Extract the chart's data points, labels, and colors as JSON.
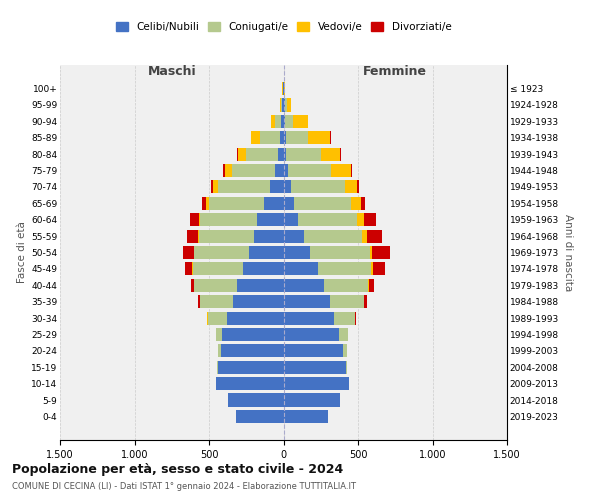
{
  "age_groups": [
    "0-4",
    "5-9",
    "10-14",
    "15-19",
    "20-24",
    "25-29",
    "30-34",
    "35-39",
    "40-44",
    "45-49",
    "50-54",
    "55-59",
    "60-64",
    "65-69",
    "70-74",
    "75-79",
    "80-84",
    "85-89",
    "90-94",
    "95-99",
    "100+"
  ],
  "birth_years": [
    "2019-2023",
    "2014-2018",
    "2009-2013",
    "2004-2008",
    "1999-2003",
    "1994-1998",
    "1989-1993",
    "1984-1988",
    "1979-1983",
    "1974-1978",
    "1969-1973",
    "1964-1968",
    "1959-1963",
    "1954-1958",
    "1949-1953",
    "1944-1948",
    "1939-1943",
    "1934-1938",
    "1929-1933",
    "1924-1928",
    "≤ 1923"
  ],
  "colors": {
    "celibi": "#4472c4",
    "coniugati": "#b5c98e",
    "vedovi": "#ffc000",
    "divorziati": "#cc0000"
  },
  "males": {
    "celibi": [
      320,
      370,
      450,
      440,
      420,
      410,
      380,
      340,
      310,
      270,
      230,
      200,
      180,
      130,
      90,
      55,
      35,
      25,
      15,
      8,
      3
    ],
    "coniugati": [
      0,
      0,
      2,
      5,
      20,
      40,
      130,
      220,
      290,
      340,
      370,
      370,
      380,
      370,
      350,
      290,
      220,
      130,
      40,
      8,
      2
    ],
    "vedovi": [
      0,
      0,
      0,
      0,
      0,
      1,
      1,
      1,
      1,
      2,
      3,
      5,
      10,
      20,
      30,
      50,
      50,
      60,
      30,
      10,
      2
    ],
    "divorziati": [
      0,
      0,
      0,
      0,
      1,
      3,
      5,
      15,
      20,
      50,
      70,
      70,
      60,
      30,
      15,
      8,
      5,
      5,
      0,
      0,
      0
    ]
  },
  "females": {
    "celibi": [
      300,
      380,
      440,
      420,
      400,
      370,
      340,
      310,
      270,
      230,
      180,
      140,
      100,
      70,
      50,
      30,
      20,
      15,
      10,
      8,
      3
    ],
    "coniugati": [
      0,
      0,
      2,
      5,
      25,
      60,
      140,
      230,
      300,
      360,
      400,
      390,
      390,
      380,
      360,
      290,
      230,
      150,
      55,
      15,
      3
    ],
    "vedovi": [
      0,
      0,
      0,
      0,
      0,
      1,
      2,
      3,
      5,
      8,
      15,
      30,
      50,
      70,
      80,
      130,
      130,
      150,
      100,
      25,
      5
    ],
    "divorziati": [
      0,
      0,
      0,
      0,
      1,
      3,
      5,
      20,
      30,
      80,
      120,
      100,
      80,
      30,
      15,
      10,
      8,
      5,
      2,
      0,
      0
    ]
  },
  "title": "Popolazione per età, sesso e stato civile - 2024",
  "subtitle": "COMUNE DI CECINA (LI) - Dati ISTAT 1° gennaio 2024 - Elaborazione TUTTITALIA.IT",
  "xlabel_left": "Maschi",
  "xlabel_right": "Femmine",
  "ylabel_left": "Fasce di età",
  "ylabel_right": "Anni di nascita",
  "xlim": 1500,
  "legend_labels": [
    "Celibi/Nubili",
    "Coniugati/e",
    "Vedovi/e",
    "Divorziati/e"
  ],
  "background_color": "#ffffff",
  "plot_bg_color": "#f0f0f0",
  "grid_color": "#cccccc"
}
